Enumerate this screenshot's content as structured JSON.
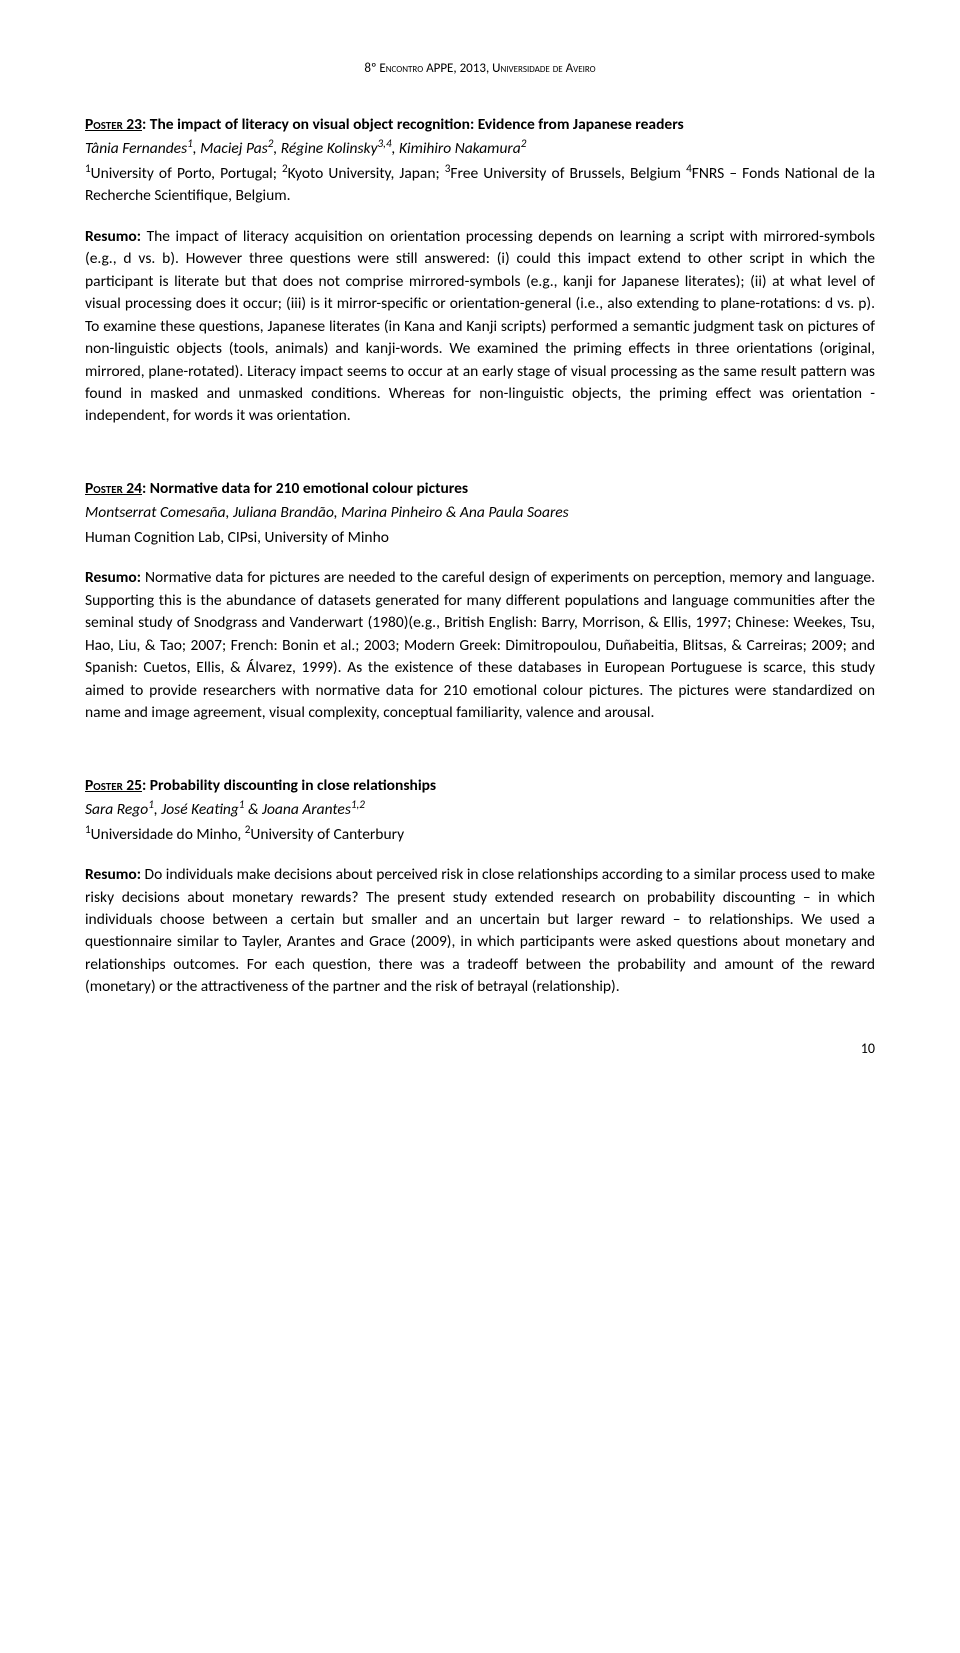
{
  "header": "8º Encontro APPE, 2013, Universidade de Aveiro",
  "posters": [
    {
      "label": "Poster 23",
      "title": ": The impact of literacy on visual object recognition: Evidence from Japanese readers",
      "authors_html": "Tânia Fernandes<sup>1</sup>, Maciej Pas<sup>2</sup>, Régine Kolinsky<sup>3,4</sup>, Kimihiro Nakamura<sup>2</sup>",
      "affiliations_html": "<sup>1</sup>University of Porto, Portugal; <sup>2</sup>Kyoto University, Japan; <sup>3</sup>Free University of Brussels, Belgium <sup>4</sup>FNRS – Fonds National de la Recherche Scientifique, Belgium.",
      "resumo": "The impact of literacy acquisition on orientation processing depends on learning a script with mirrored-symbols (e.g., d vs. b). However three questions were still answered: (i) could this impact extend to other script in which the participant is literate but that does not comprise mirrored-symbols (e.g., kanji for Japanese literates); (ii) at what level of visual processing does it occur; (iii) is it mirror-specific or orientation-general (i.e., also extending to plane-rotations: d vs. p). To examine these questions, Japanese literates (in Kana and Kanji scripts) performed a semantic judgment task on pictures of non-linguistic objects (tools, animals) and kanji-words. We examined the priming effects in three orientations (original, mirrored, plane-rotated). Literacy impact seems to occur at an early stage of visual processing as the same result pattern was found in masked and unmasked conditions. Whereas for non-linguistic objects, the priming effect was orientation  - independent, for words it was orientation."
    },
    {
      "label": "Poster 24",
      "title": ": Normative data for 210 emotional colour pictures",
      "authors_html": "Montserrat Comesaña, Juliana Brandão, Marina Pinheiro & Ana Paula Soares",
      "affiliations_html": "Human Cognition Lab, CIPsi, University of Minho",
      "resumo": "Normative data for pictures are needed to the careful design of experiments on perception, memory and language. Supporting this is the abundance of datasets generated for many different populations and language communities after the seminal study of Snodgrass and Vanderwart (1980)(e.g., British English: Barry, Morrison, & Ellis, 1997; Chinese: Weekes, Tsu, Hao, Liu, & Tao; 2007; French: Bonin et al.; 2003; Modern Greek: Dimitropoulou, Duñabeitia, Blitsas, & Carreiras; 2009; and Spanish: Cuetos, Ellis, & Álvarez, 1999). As the existence of these databases in European Portuguese is scarce, this study aimed to provide researchers with normative data for 210 emotional colour pictures. The pictures were standardized on name and image agreement, visual complexity, conceptual familiarity, valence and arousal."
    },
    {
      "label": "Poster 25",
      "title": ": Probability discounting in close relationships",
      "authors_html": "Sara Rego<sup>1</sup>, José Keating<sup>1</sup> & Joana Arantes<sup>1,2</sup>",
      "affiliations_html": "<sup>1</sup>Universidade do Minho, <sup>2</sup>University of Canterbury",
      "resumo": "Do individuals make decisions about perceived risk in close relationships according to a similar process used to make risky decisions about monetary rewards? The present study extended research on probability discounting – in which individuals choose between a certain but smaller and an uncertain but larger reward – to relationships. We used a questionnaire similar to Tayler, Arantes and Grace (2009), in which participants were asked questions about monetary and relationships outcomes. For each question, there was a tradeoff between the probability and amount of the reward (monetary) or the attractiveness of the partner and the risk of betrayal (relationship)."
    }
  ],
  "resumo_label": "Resumo:",
  "page_number": "10"
}
